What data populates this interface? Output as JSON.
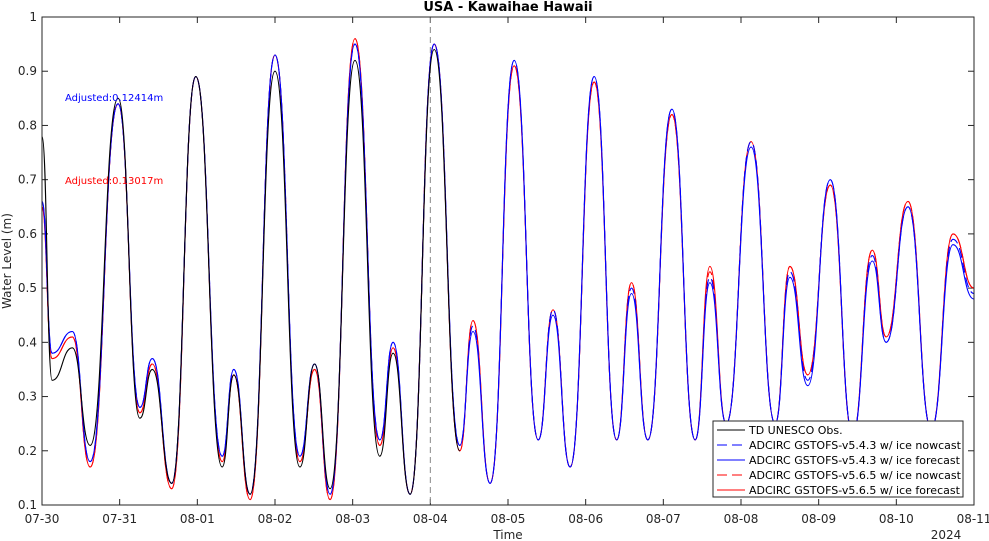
{
  "chart_data": {
    "type": "line",
    "title": "USA - Kawaihae Hawaii",
    "xlabel": "Time",
    "ylabel": "Water Level (m)",
    "x_year_label": "2024",
    "x": [
      0,
      0.13,
      0.39,
      0.62,
      0.98,
      1.26,
      1.42,
      1.67,
      1.98,
      2.32,
      2.47,
      2.68,
      3.0,
      3.32,
      3.51,
      3.71,
      4.03,
      4.35,
      4.52,
      4.74,
      5.05,
      5.38,
      5.55,
      5.77,
      6.08,
      6.39,
      6.58,
      6.8,
      7.11,
      7.4,
      7.59,
      7.8,
      8.11,
      8.41,
      8.6,
      8.81,
      9.13,
      9.44,
      9.63,
      9.86,
      10.15,
      10.44,
      10.69,
      10.87,
      11.15,
      11.45,
      11.73,
      12
    ],
    "xlim": [
      0,
      12
    ],
    "xticks": [
      {
        "value": 0,
        "label": "07-30"
      },
      {
        "value": 1,
        "label": "07-31"
      },
      {
        "value": 2,
        "label": "08-01"
      },
      {
        "value": 3,
        "label": "08-02"
      },
      {
        "value": 4,
        "label": "08-03"
      },
      {
        "value": 5,
        "label": "08-04"
      },
      {
        "value": 6,
        "label": "08-05"
      },
      {
        "value": 7,
        "label": "08-06"
      },
      {
        "value": 8,
        "label": "08-07"
      },
      {
        "value": 9,
        "label": "08-08"
      },
      {
        "value": 10,
        "label": "08-09"
      },
      {
        "value": 11,
        "label": "08-10"
      },
      {
        "value": 12,
        "label": "08-11"
      }
    ],
    "ylim": [
      0.1,
      1
    ],
    "yticks": [
      0.1,
      0.2,
      0.3,
      0.4,
      0.5,
      0.6,
      0.7,
      0.8,
      0.9,
      1
    ],
    "grid": false,
    "vline_x": 5,
    "legend": "lower right",
    "annotations": [
      {
        "text": "Adjusted:0.12414m",
        "color": "#0000ff"
      },
      {
        "text": "Adjusted:0.13017m",
        "color": "#ff0000"
      }
    ],
    "series": [
      {
        "name": "TD UNESCO Obs.",
        "color": "#000000",
        "dashed": false,
        "values": [
          0.78,
          0.33,
          0.39,
          0.21,
          0.85,
          0.26,
          0.35,
          0.14,
          0.89,
          0.17,
          0.34,
          0.12,
          0.9,
          0.17,
          0.36,
          0.13,
          0.92,
          0.19,
          0.38,
          0.12,
          0.94,
          0.2,
          null,
          null,
          null,
          null,
          null,
          null,
          null,
          null,
          null,
          null,
          null,
          null,
          null,
          null,
          null,
          null,
          null,
          null,
          null,
          null,
          null,
          null,
          null,
          null,
          null,
          null
        ]
      },
      {
        "name": "ADCIRC GSTOFS-v5.4.3 w/ ice nowcast",
        "color": "#0000ff",
        "dashed": true,
        "values": [
          0.66,
          0.38,
          0.42,
          0.18,
          0.84,
          0.28,
          0.37,
          0.14,
          0.89,
          0.19,
          0.35,
          0.12,
          0.93,
          0.19,
          0.36,
          0.12,
          0.95,
          0.22,
          0.4,
          0.12,
          0.95,
          0.21,
          0.43,
          0.14,
          0.92,
          0.22,
          0.46,
          0.17,
          0.89,
          0.22,
          0.5,
          0.22,
          0.83,
          0.22,
          0.52,
          0.25,
          0.77,
          0.25,
          0.53,
          0.33,
          0.7,
          0.23,
          0.56,
          0.4,
          0.65,
          0.24,
          0.59,
          0.49
        ]
      },
      {
        "name": "ADCIRC GSTOFS-v5.4.3 w/ ice forecast",
        "color": "#0000ff",
        "dashed": false,
        "values": [
          0.66,
          0.38,
          0.42,
          0.18,
          0.84,
          0.28,
          0.37,
          0.14,
          0.89,
          0.19,
          0.35,
          0.12,
          0.93,
          0.19,
          0.36,
          0.12,
          0.95,
          0.22,
          0.4,
          0.12,
          0.95,
          0.21,
          0.42,
          0.14,
          0.92,
          0.22,
          0.45,
          0.17,
          0.89,
          0.22,
          0.49,
          0.22,
          0.83,
          0.22,
          0.51,
          0.25,
          0.76,
          0.25,
          0.52,
          0.32,
          0.7,
          0.23,
          0.55,
          0.4,
          0.65,
          0.24,
          0.58,
          0.48
        ]
      },
      {
        "name": "ADCIRC GSTOFS-v5.6.5 w/ ice nowcast",
        "color": "#ff0000",
        "dashed": true,
        "values": [
          0.65,
          0.37,
          0.41,
          0.17,
          0.84,
          0.27,
          0.36,
          0.13,
          0.89,
          0.18,
          0.34,
          0.11,
          0.93,
          0.18,
          0.35,
          0.11,
          0.96,
          0.21,
          0.39,
          0.12,
          0.95,
          0.2,
          0.44,
          0.14,
          0.91,
          0.22,
          0.46,
          0.17,
          0.88,
          0.22,
          0.51,
          0.22,
          0.82,
          0.22,
          0.53,
          0.25,
          0.77,
          0.25,
          0.54,
          0.34,
          0.69,
          0.23,
          0.57,
          0.41,
          0.66,
          0.24,
          0.6,
          0.5
        ]
      },
      {
        "name": "ADCIRC GSTOFS-v5.6.5 w/ ice forecast",
        "color": "#ff0000",
        "dashed": false,
        "values": [
          0.65,
          0.37,
          0.41,
          0.17,
          0.84,
          0.27,
          0.36,
          0.13,
          0.89,
          0.18,
          0.34,
          0.11,
          0.93,
          0.18,
          0.35,
          0.11,
          0.96,
          0.21,
          0.39,
          0.12,
          0.95,
          0.2,
          0.44,
          0.14,
          0.91,
          0.22,
          0.46,
          0.17,
          0.88,
          0.22,
          0.51,
          0.22,
          0.82,
          0.22,
          0.54,
          0.25,
          0.77,
          0.25,
          0.54,
          0.34,
          0.69,
          0.23,
          0.57,
          0.41,
          0.66,
          0.24,
          0.6,
          0.5
        ]
      }
    ]
  }
}
